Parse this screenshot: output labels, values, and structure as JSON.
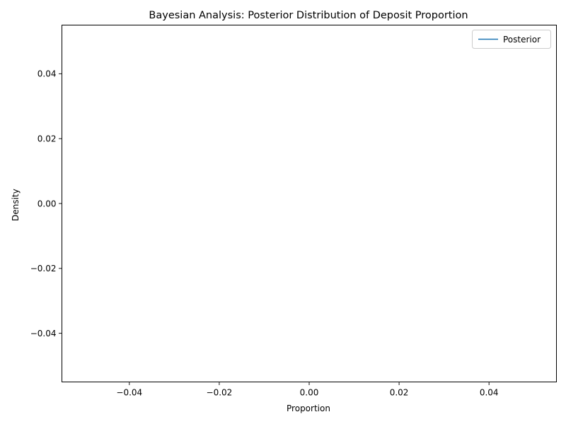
{
  "chart_data": {
    "type": "line",
    "title": "Bayesian Analysis: Posterior Distribution of Deposit Proportion",
    "xlabel": "Proportion",
    "ylabel": "Density",
    "xlim": [
      -0.055,
      0.055
    ],
    "ylim": [
      -0.055,
      0.055
    ],
    "xticks": [
      -0.04,
      -0.02,
      0.0,
      0.02,
      0.04
    ],
    "xtick_labels": [
      "−0.04",
      "−0.02",
      "0.00",
      "0.02",
      "0.04"
    ],
    "yticks": [
      -0.04,
      -0.02,
      0.0,
      0.02,
      0.04
    ],
    "ytick_labels": [
      "−0.04",
      "−0.02",
      "0.00",
      "0.02",
      "0.04"
    ],
    "grid": false,
    "legend_position": "top-right",
    "series": [
      {
        "name": "Posterior",
        "color": "#1f77b4",
        "x": [],
        "y": []
      }
    ]
  }
}
